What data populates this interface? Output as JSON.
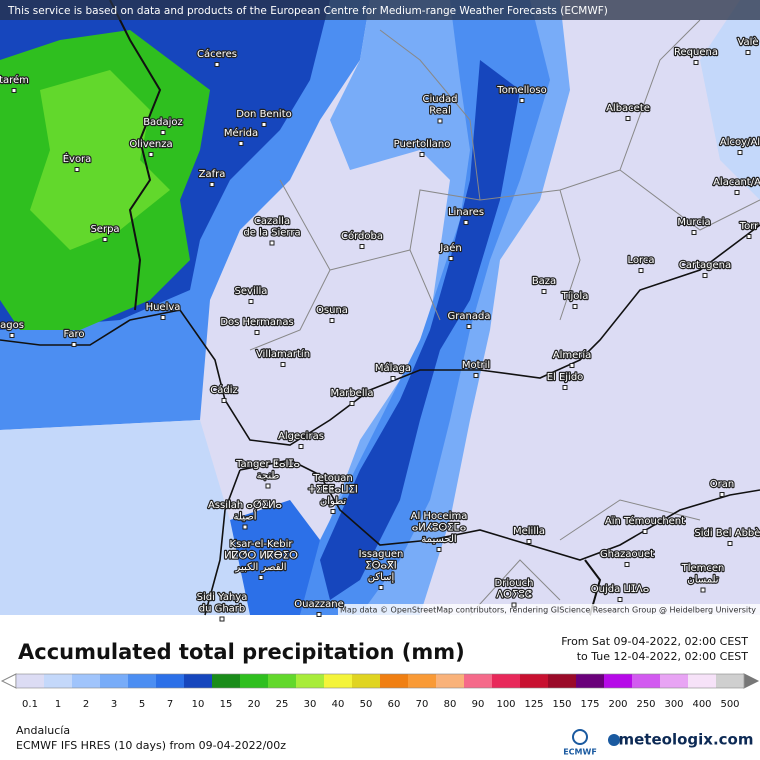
{
  "banner": "This service is based on data and products of the European Centre for Medium-range Weather Forecasts (ECMWF)",
  "attribution": "Map data © OpenStreetMap contributors, rendering GIScience Research Group @ Heidelberg University",
  "cities": [
    [
      "Cáceres"
    ],
    [
      "Requena"
    ],
    [
      "Valè"
    ],
    [
      "tarém"
    ],
    [
      "Don Benito"
    ],
    [
      "Mérida"
    ],
    [
      "Badajoz"
    ],
    [
      "Olivenza"
    ],
    [
      "Évora"
    ],
    [
      "Zafra"
    ],
    [
      "Ciudad",
      "Real"
    ],
    [
      "Tomelloso"
    ],
    [
      "Albacete"
    ],
    [
      "Alcoy/Al"
    ],
    [
      "Puertollano"
    ],
    [
      "Alacant/A"
    ],
    [
      "Cazalla",
      "de la Sierra"
    ],
    [
      "Córdoba"
    ],
    [
      "Linares"
    ],
    [
      "Murcia"
    ],
    [
      "Torr"
    ],
    [
      "Serpa"
    ],
    [
      "Jaén"
    ],
    [
      "Lorca"
    ],
    [
      "Cartagena"
    ],
    [
      "Baza"
    ],
    [
      "Sevilla"
    ],
    [
      "Tíjola"
    ],
    [
      "Huelva"
    ],
    [
      "Osuna"
    ],
    [
      "Granada"
    ],
    [
      "agos"
    ],
    [
      "Dos Hermanas"
    ],
    [
      "Faro"
    ],
    [
      "Villamartín"
    ],
    [
      "Almería"
    ],
    [
      "Motril"
    ],
    [
      "Málaga"
    ],
    [
      "El Ejido"
    ],
    [
      "Cádiz"
    ],
    [
      "Marbella"
    ],
    [
      "Algeciras"
    ],
    [
      "Tanger ⵟⴰⵏⵊⴰ",
      "طنجة"
    ],
    [
      "Tetouan",
      "ⵜⵉⵟⵟⴰⵡⵉⵏ",
      "تطوان"
    ],
    [
      "Oran"
    ],
    [
      "Assilah ⴰⵚⵉⵍⴰ",
      "أصيلة"
    ],
    [
      "Al Hoceima",
      "ⴰⵍⵃⵓⵙⵉⵎⴰ",
      "الحسيمة"
    ],
    [
      "Aïn Témouchent"
    ],
    [
      "Melilla"
    ],
    [
      "Sidi Bel Abbès"
    ],
    [
      "Ksar-el-Kebir",
      "ⵍⵇⵚⵔ ⵍⴽⴱⵉⵔ",
      "القصر الكبير"
    ],
    [
      "Ghazaouet"
    ],
    [
      "Issaguen",
      "ⵉⵙⴰⴳⵏ",
      "إساكن"
    ],
    [
      "Tlemcen",
      "تلمسان"
    ],
    [
      "Driouch",
      "ⴷⵔⵢⵓⵛ"
    ],
    [
      "Sidi Yahya",
      "du Gharb"
    ],
    [
      "Oujda ⵡⵊⴷⴰ"
    ],
    [
      "Ouazzane"
    ]
  ],
  "title": "Accumulated total precipitation (mm)",
  "period_from": "From Sat 09-04-2022, 02:00 CEST",
  "period_to": "to Tue 12-04-2022, 02:00 CEST",
  "legend": {
    "labels": [
      0.1,
      1,
      2,
      3,
      5,
      7,
      10,
      15,
      20,
      25,
      30,
      40,
      50,
      60,
      70,
      80,
      90,
      100,
      125,
      150,
      175,
      200,
      250,
      300,
      400,
      500
    ],
    "colors": [
      "#dcdcf4",
      "#c4d8fa",
      "#a0c4fb",
      "#78acf8",
      "#4c8ef2",
      "#2c70e8",
      "#1646bd",
      "#1a8c1a",
      "#2fbf1f",
      "#62d82c",
      "#a8ec3a",
      "#f4f43a",
      "#e0d421",
      "#f07f12",
      "#f99a36",
      "#f9b27a",
      "#f56a8a",
      "#e8285a",
      "#c81030",
      "#9a0a28",
      "#6a007a",
      "#b60ae8",
      "#d25af0",
      "#e8a4f4",
      "#f6e2f8",
      "#cfcfcf"
    ]
  },
  "region": "Andalucía",
  "model": "ECMWF IFS HRES (10 days) from 09-04-2022/00z",
  "logo_ecmwf": "ECMWF",
  "logo_site": "meteologix.com"
}
